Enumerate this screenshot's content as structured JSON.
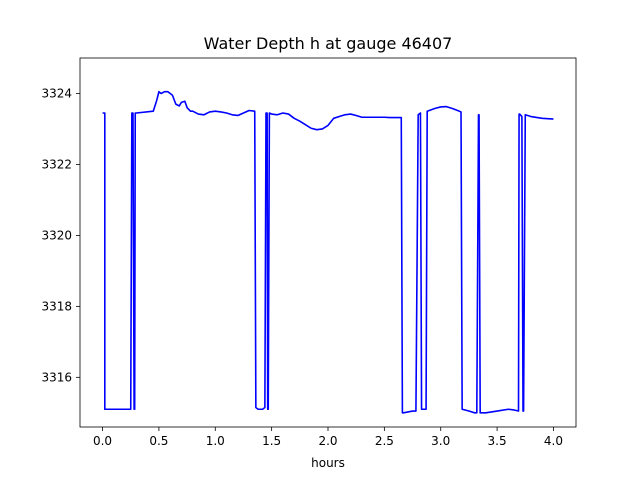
{
  "chart_data": {
    "type": "line",
    "title": "Water Depth h at gauge 46407",
    "xlabel": "hours",
    "ylabel": "",
    "xlim": [
      -0.2,
      4.2
    ],
    "ylim": [
      3314.6,
      3325.0
    ],
    "x_ticks": [
      0.0,
      0.5,
      1.0,
      1.5,
      2.0,
      2.5,
      3.0,
      3.5,
      4.0
    ],
    "x_tick_labels": [
      "0.0",
      "0.5",
      "1.0",
      "1.5",
      "2.0",
      "2.5",
      "3.0",
      "3.5",
      "4.0"
    ],
    "y_ticks": [
      3316,
      3318,
      3320,
      3322,
      3324
    ],
    "y_tick_labels": [
      "3316",
      "3318",
      "3320",
      "3322",
      "3324"
    ],
    "grid": false,
    "series": [
      {
        "color": "#0000ff",
        "x": [
          0.0,
          0.02,
          0.02,
          0.25,
          0.26,
          0.27,
          0.28,
          0.285,
          0.29,
          0.3,
          0.45,
          0.48,
          0.5,
          0.52,
          0.55,
          0.58,
          0.62,
          0.65,
          0.68,
          0.7,
          0.73,
          0.75,
          0.78,
          0.8,
          0.85,
          0.9,
          0.95,
          1.0,
          1.05,
          1.1,
          1.15,
          1.2,
          1.25,
          1.3,
          1.35,
          1.36,
          1.38,
          1.4,
          1.42,
          1.44,
          1.45,
          1.46,
          1.465,
          1.47,
          1.48,
          1.5,
          1.55,
          1.6,
          1.65,
          1.7,
          1.75,
          1.8,
          1.85,
          1.9,
          1.95,
          2.0,
          2.05,
          2.1,
          2.15,
          2.2,
          2.25,
          2.3,
          2.35,
          2.4,
          2.45,
          2.5,
          2.55,
          2.6,
          2.65,
          2.66,
          2.67,
          2.75,
          2.78,
          2.8,
          2.82,
          2.83,
          2.87,
          2.88,
          2.95,
          3.0,
          3.05,
          3.1,
          3.15,
          3.18,
          3.19,
          3.25,
          3.3,
          3.32,
          3.335,
          3.34,
          3.35,
          3.4,
          3.5,
          3.6,
          3.65,
          3.69,
          3.695,
          3.7,
          3.72,
          3.73,
          3.735,
          3.75,
          3.8,
          3.9,
          4.0
        ],
        "y": [
          3323.45,
          3323.45,
          3315.1,
          3315.1,
          3323.45,
          3323.45,
          3315.1,
          3315.1,
          3323.45,
          3323.45,
          3323.5,
          3323.8,
          3324.05,
          3324.0,
          3324.05,
          3324.05,
          3323.95,
          3323.7,
          3323.65,
          3323.75,
          3323.78,
          3323.6,
          3323.5,
          3323.5,
          3323.42,
          3323.4,
          3323.48,
          3323.5,
          3323.48,
          3323.45,
          3323.4,
          3323.38,
          3323.45,
          3323.52,
          3323.5,
          3315.15,
          3315.1,
          3315.1,
          3315.1,
          3315.15,
          3323.45,
          3323.45,
          3315.1,
          3315.1,
          3323.45,
          3323.42,
          3323.4,
          3323.45,
          3323.42,
          3323.3,
          3323.22,
          3323.12,
          3323.02,
          3322.98,
          3323.0,
          3323.1,
          3323.3,
          3323.35,
          3323.4,
          3323.42,
          3323.38,
          3323.33,
          3323.33,
          3323.33,
          3323.33,
          3323.33,
          3323.32,
          3323.32,
          3323.32,
          3315.0,
          3315.0,
          3315.05,
          3315.05,
          3323.4,
          3323.45,
          3315.1,
          3315.1,
          3323.5,
          3323.58,
          3323.62,
          3323.63,
          3323.58,
          3323.52,
          3323.48,
          3315.1,
          3315.05,
          3315.0,
          3315.0,
          3323.4,
          3323.4,
          3315.0,
          3315.0,
          3315.05,
          3315.1,
          3315.08,
          3315.05,
          3323.42,
          3323.42,
          3323.35,
          3315.05,
          3315.05,
          3323.4,
          3323.35,
          3323.3,
          3323.28
        ]
      }
    ]
  }
}
